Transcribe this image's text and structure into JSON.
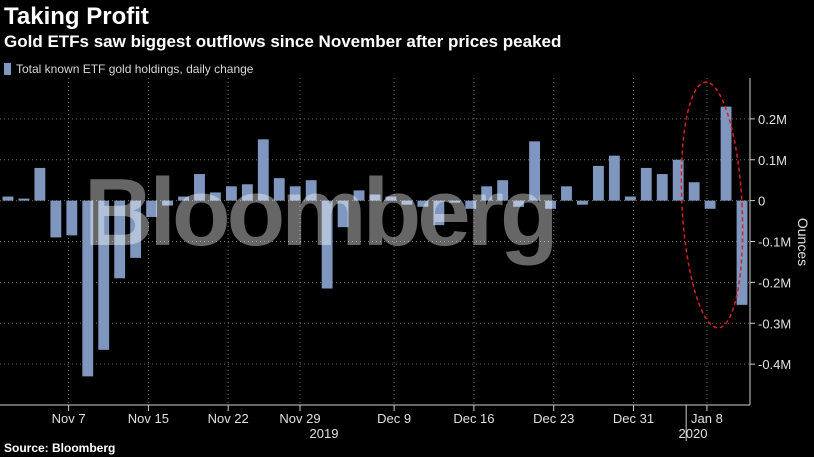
{
  "title": "Taking Profit",
  "subtitle": "Gold ETFs saw biggest outflows since November after prices peaked",
  "source": "Source: Bloomberg",
  "watermark": "Bloomberg",
  "colors": {
    "bar": "#7f97bf",
    "background": "#000000",
    "grid": "#6e6e6e",
    "annotation": "#d62020"
  },
  "chart_data": {
    "type": "bar",
    "series": [
      {
        "name": "Total known ETF gold holdings, daily change",
        "values": [
          0.01,
          0.005,
          0.08,
          -0.09,
          -0.085,
          -0.43,
          -0.365,
          -0.19,
          -0.14,
          -0.04,
          -0.012,
          0.01,
          0.065,
          0.02,
          0.035,
          0.04,
          0.15,
          0.055,
          0.035,
          0.05,
          -0.215,
          -0.065,
          0.025,
          0.015,
          0.01,
          -0.01,
          -0.015,
          -0.06,
          -0.005,
          -0.02,
          0.035,
          0.05,
          -0.015,
          0.145,
          -0.02,
          0.035,
          -0.01,
          0.085,
          0.11,
          0.01,
          0.08,
          0.065,
          0.1,
          0.045,
          -0.02,
          0.23,
          -0.255
        ]
      }
    ],
    "x_ticks": [
      "Nov 7",
      "Nov 15",
      "Nov 22",
      "Nov 29",
      "Dec 9",
      "Dec 16",
      "Dec 23",
      "Dec 31",
      "Jan 8"
    ],
    "year_labels": [
      "2019",
      "2020"
    ],
    "y_ticks": [
      "0.2M",
      "0.1M",
      "0",
      "-0.1M",
      "-0.2M",
      "-0.3M",
      "-0.4M"
    ],
    "ylabel": "Ounces",
    "ylim": [
      -0.5,
      0.3
    ],
    "grid": true,
    "legend": "top-left",
    "annotation": "red dashed ellipse around the last two bars"
  }
}
